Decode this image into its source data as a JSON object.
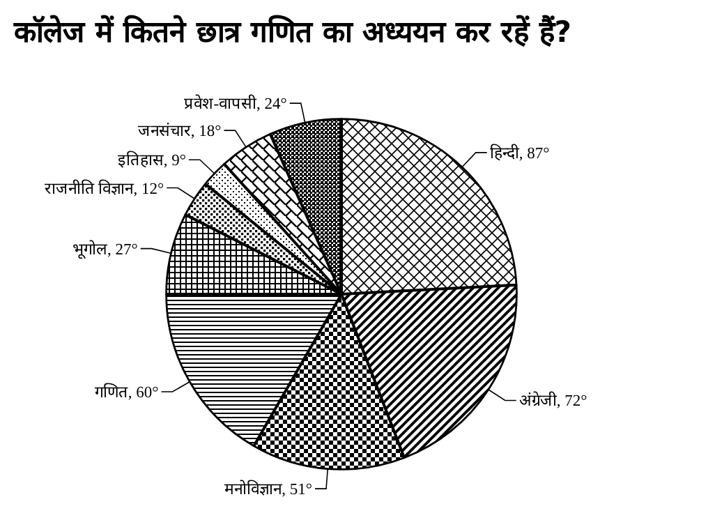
{
  "chart_data": {
    "type": "pie",
    "title": "कॉलेज में कितने छात्र गणित का अध्ययन कर रहें हैं?",
    "categories": [
      "हिन्दी",
      "अंग्रेजी",
      "मनोविज्ञान",
      "गणित",
      "भूगोल",
      "राजनीति विज्ञान",
      "इतिहास",
      "जनसंचार",
      "प्रवेश-वापसी"
    ],
    "values": [
      87,
      72,
      51,
      60,
      27,
      12,
      9,
      18,
      24
    ],
    "value_labels": [
      "87°",
      "72°",
      "51°",
      "60°",
      "27°",
      "12°",
      "9°",
      "18°",
      "24°"
    ],
    "colors": [
      "#000000",
      "#000000",
      "#000000",
      "#000000",
      "#000000",
      "#000000",
      "#000000",
      "#000000",
      "#000000"
    ]
  }
}
